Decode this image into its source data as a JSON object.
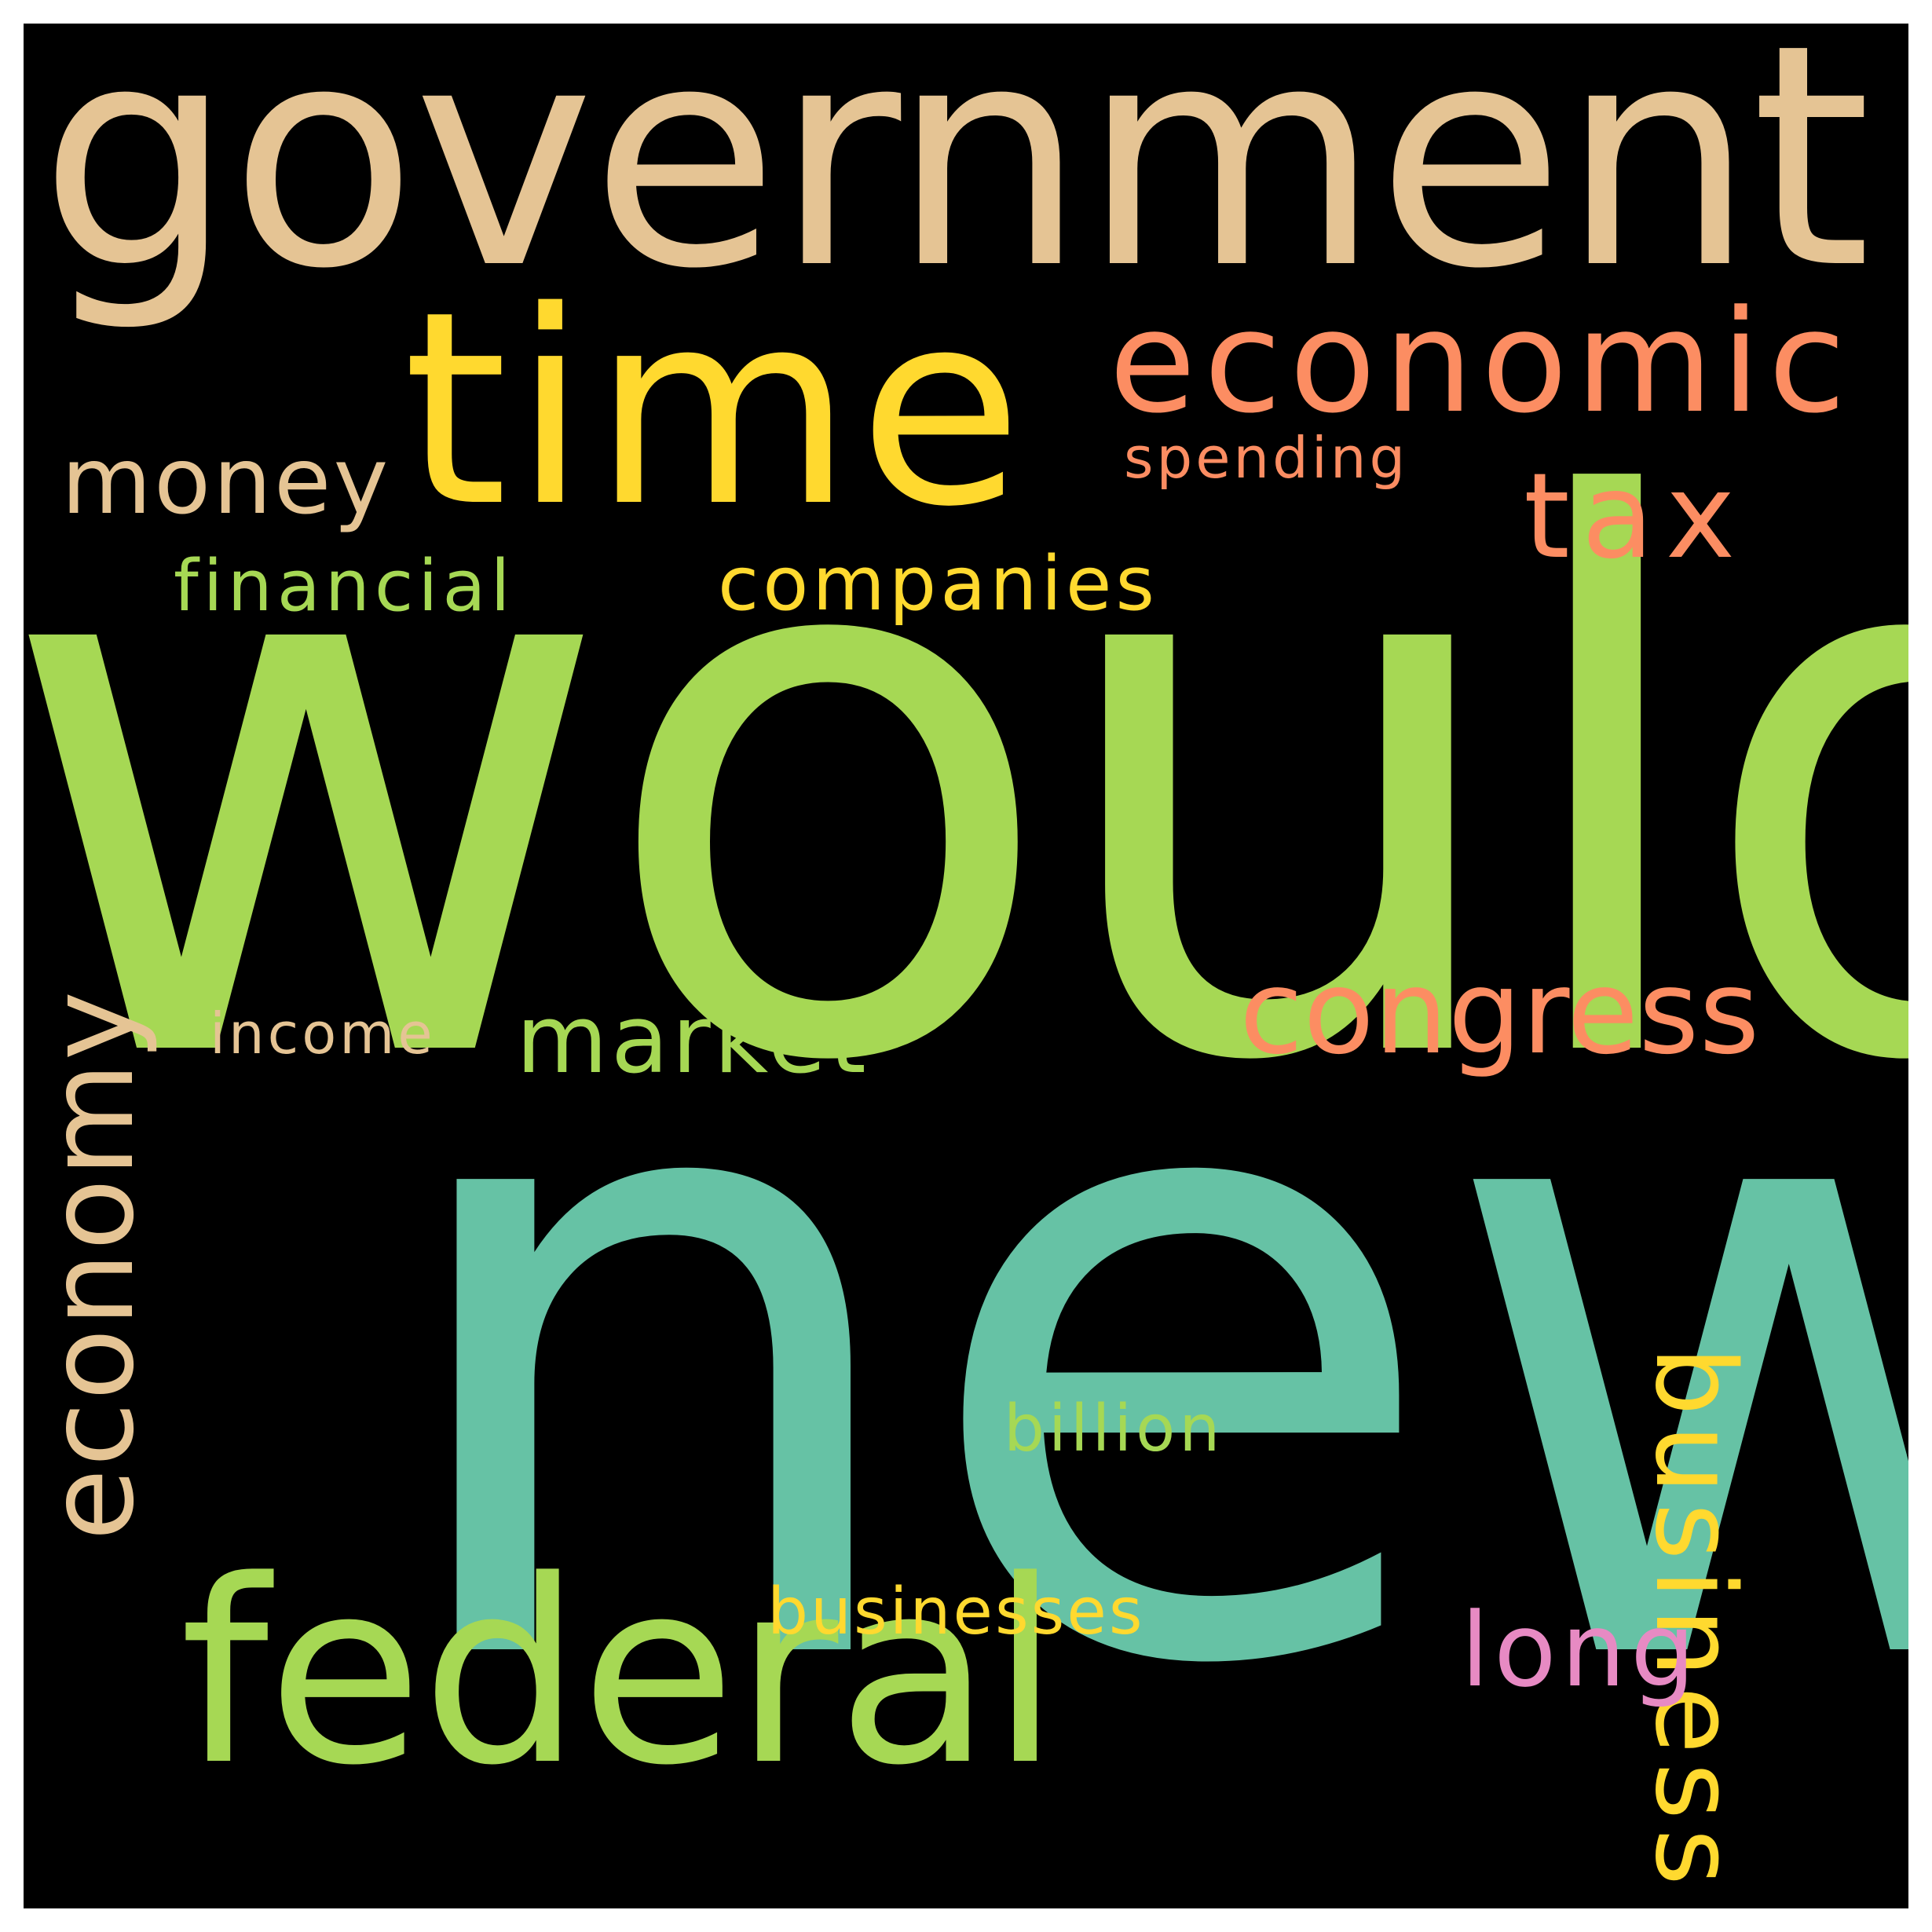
{
  "cloud": {
    "background": "#000000",
    "words": [
      {
        "text": "would",
        "color": "#a6d854",
        "rotated": false
      },
      {
        "text": "new",
        "color": "#66c2a5",
        "rotated": false
      },
      {
        "text": "government",
        "color": "#e5c494",
        "rotated": false
      },
      {
        "text": "time",
        "color": "#ffd92f",
        "rotated": false
      },
      {
        "text": "federal",
        "color": "#a6d854",
        "rotated": false
      },
      {
        "text": "economic",
        "color": "#fc8d62",
        "rotated": false
      },
      {
        "text": "economy",
        "color": "#e5c494",
        "rotated": true
      },
      {
        "text": "business",
        "color": "#ffd92f",
        "rotated": true
      },
      {
        "text": "congress",
        "color": "#fc8d62",
        "rotated": false
      },
      {
        "text": "tax",
        "color": "#fc8d62",
        "rotated": false
      },
      {
        "text": "money",
        "color": "#e5c494",
        "rotated": false
      },
      {
        "text": "market",
        "color": "#a6d854",
        "rotated": false
      },
      {
        "text": "long",
        "color": "#e78ac3",
        "rotated": false
      },
      {
        "text": "companies",
        "color": "#ffd92f",
        "rotated": false
      },
      {
        "text": "financial",
        "color": "#a6d854",
        "rotated": false
      },
      {
        "text": "businesses",
        "color": "#ffd92f",
        "rotated": false
      },
      {
        "text": "billion",
        "color": "#a6d854",
        "rotated": false
      },
      {
        "text": "spending",
        "color": "#fc8d62",
        "rotated": false
      },
      {
        "text": "income",
        "color": "#e5c494",
        "rotated": false
      }
    ]
  }
}
